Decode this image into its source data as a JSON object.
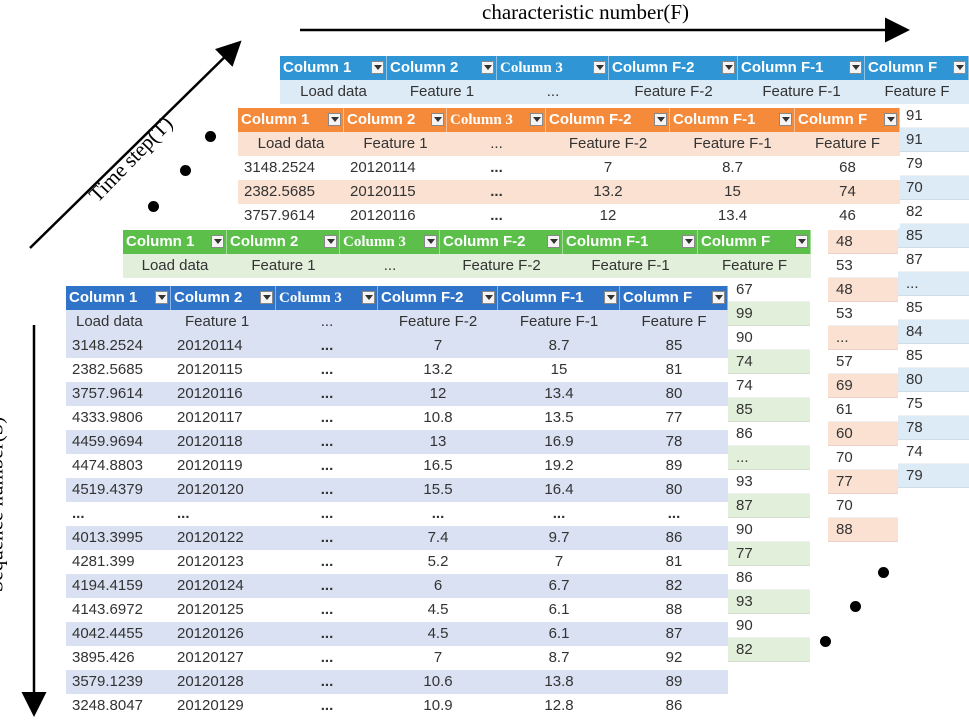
{
  "labels": {
    "characteristic": "characteristic number(F)",
    "time": "Time step(T)",
    "sequence": "Sequence number(S)"
  },
  "colors": {
    "blue": "#2f95d4",
    "orange": "#f58a3b",
    "green": "#5bbf4a",
    "front_header": "#2f74c8",
    "front_band": "#d9e1f2",
    "orange_band": "#fbe1d2",
    "green_band": "#e2efda",
    "blue_band": "#ddebf7"
  },
  "headers": [
    "Column 1",
    "Column 2",
    "Column 3",
    "Column F-2",
    "Column F-1",
    "Column F"
  ],
  "subheaders": [
    "Load data",
    "Feature 1",
    "...",
    "Feature F-2",
    "Feature F-1",
    "Feature F"
  ],
  "ellipsis": "...",
  "front_rows": [
    [
      "3148.2524",
      "20120114",
      "...",
      "7",
      "8.7",
      "85"
    ],
    [
      "2382.5685",
      "20120115",
      "...",
      "13.2",
      "15",
      "81"
    ],
    [
      "3757.9614",
      "20120116",
      "...",
      "12",
      "13.4",
      "80"
    ],
    [
      "4333.9806",
      "20120117",
      "...",
      "10.8",
      "13.5",
      "77"
    ],
    [
      "4459.9694",
      "20120118",
      "...",
      "13",
      "16.9",
      "78"
    ],
    [
      "4474.8803",
      "20120119",
      "...",
      "16.5",
      "19.2",
      "89"
    ],
    [
      "4519.4379",
      "20120120",
      "...",
      "15.5",
      "16.4",
      "80"
    ],
    [
      "...",
      "...",
      "...",
      "...",
      "...",
      "..."
    ],
    [
      "4013.3995",
      "20120122",
      "...",
      "7.4",
      "9.7",
      "86"
    ],
    [
      "4281.399",
      "20120123",
      "...",
      "5.2",
      "7",
      "81"
    ],
    [
      "4194.4159",
      "20120124",
      "...",
      "6",
      "6.7",
      "82"
    ],
    [
      "4143.6972",
      "20120125",
      "...",
      "4.5",
      "6.1",
      "88"
    ],
    [
      "4042.4455",
      "20120126",
      "...",
      "4.5",
      "6.1",
      "87"
    ],
    [
      "3895.426",
      "20120127",
      "...",
      "7",
      "8.7",
      "92"
    ],
    [
      "3579.1239",
      "20120128",
      "...",
      "10.6",
      "13.8",
      "89"
    ],
    [
      "3248.8047",
      "20120129",
      "...",
      "10.9",
      "12.8",
      "86"
    ]
  ],
  "orange_rows": [
    [
      "3148.2524",
      "20120114",
      "...",
      "7",
      "8.7",
      "68"
    ],
    [
      "2382.5685",
      "20120115",
      "...",
      "13.2",
      "15",
      "74"
    ],
    [
      "3757.9614",
      "20120116",
      "...",
      "12",
      "13.4",
      "46"
    ]
  ],
  "green_strip": [
    "67",
    "99",
    "90",
    "74",
    "74",
    "85",
    "86",
    "...",
    "93",
    "87",
    "90",
    "77",
    "86",
    "93",
    "90",
    "82"
  ],
  "orange_strip": [
    "48",
    "53",
    "48",
    "53",
    "...",
    "57",
    "69",
    "61",
    "60",
    "70",
    "77",
    "70",
    "88"
  ],
  "blue_strip": [
    "91",
    "91",
    "79",
    "70",
    "82",
    "85",
    "87",
    "...",
    "85",
    "84",
    "85",
    "80",
    "75",
    "78",
    "74",
    "79"
  ]
}
